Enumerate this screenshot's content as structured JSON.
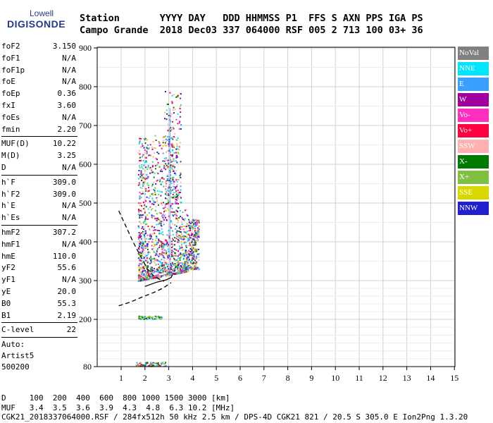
{
  "logo": {
    "line1": "Lowell",
    "line2": "DIGISONDE"
  },
  "header": {
    "line1": "Station       YYYY DAY   DDD HHMMSS P1  FFS S AXN PPS IGA PS",
    "line2": "Campo Grande  2018 Dec03 337 064000 RSF 005 2 713 100 03+ 36"
  },
  "params": {
    "group1": [
      {
        "label": "foF2",
        "value": "3.150"
      },
      {
        "label": "foF1",
        "value": "N/A"
      },
      {
        "label": "foF1p",
        "value": "N/A"
      },
      {
        "label": "foE",
        "value": "N/A"
      },
      {
        "label": "foEp",
        "value": "0.36"
      },
      {
        "label": "fxI",
        "value": "3.60"
      },
      {
        "label": "foEs",
        "value": "N/A"
      },
      {
        "label": "fmin",
        "value": "2.20"
      }
    ],
    "group2": [
      {
        "label": "MUF(D)",
        "value": "10.22"
      },
      {
        "label": "M(D)",
        "value": "3.25"
      },
      {
        "label": "D",
        "value": "N/A"
      }
    ],
    "group3": [
      {
        "label": "h`F",
        "value": "309.0"
      },
      {
        "label": "h`F2",
        "value": "309.0"
      },
      {
        "label": "h`E",
        "value": "N/A"
      },
      {
        "label": "h`Es",
        "value": "N/A"
      }
    ],
    "group4": [
      {
        "label": "hmF2",
        "value": "307.2"
      },
      {
        "label": "hmF1",
        "value": "N/A"
      },
      {
        "label": "hmE",
        "value": "110.0"
      },
      {
        "label": "yF2",
        "value": "55.6"
      },
      {
        "label": "yF1",
        "value": "N/A"
      },
      {
        "label": "yE",
        "value": "20.0"
      },
      {
        "label": "B0",
        "value": "55.3"
      },
      {
        "label": "B1",
        "value": "2.19"
      }
    ],
    "group5": [
      {
        "label": "C-level",
        "value": "22"
      }
    ],
    "auto": {
      "line1": "Auto:",
      "line2": "Artist5",
      "line3": "500200"
    }
  },
  "legend": [
    {
      "label": "NoVal",
      "color": "#808080"
    },
    {
      "label": "NNE",
      "color": "#00e5ff"
    },
    {
      "label": "E",
      "color": "#3aa0ff"
    },
    {
      "label": "W",
      "color": "#a000a0"
    },
    {
      "label": "Vo-",
      "color": "#ff30c0"
    },
    {
      "label": "Vo+",
      "color": "#ff0040"
    },
    {
      "label": "SSW",
      "color": "#ffb0b0"
    },
    {
      "label": "X-",
      "color": "#007a00"
    },
    {
      "label": "X+",
      "color": "#80c040"
    },
    {
      "label": "SSE",
      "color": "#d8d800"
    },
    {
      "label": "NNW",
      "color": "#2020d0"
    }
  ],
  "footer": {
    "line1": "D     100  200  400  600  800 1000 1500 3000 [km]",
    "line2": "MUF   3.4  3.5  3.6  3.9  4.3  4.8  6.3 10.2 [MHz]",
    "line3": "CGK21_2018337064000.RSF / 284fx512h 50 kHz 2.5 km / DPS-4D CGK21 821 / 20.5 S 305.0 E Ion2Png 1.3.20"
  },
  "chart_data": {
    "type": "scatter",
    "title": "",
    "xlabel": "",
    "ylabel": "",
    "xlim": [
      0.9,
      15
    ],
    "ylim": [
      80,
      900
    ],
    "xticks": [
      1,
      2,
      3,
      4,
      5,
      6,
      7,
      8,
      9,
      10,
      11,
      12,
      13,
      14,
      15
    ],
    "yticks": [
      80,
      200,
      300,
      400,
      500,
      600,
      700,
      800,
      900
    ],
    "grid": true,
    "legend_placement": "right",
    "trace_profile": {
      "style": "solid",
      "points": [
        [
          2.0,
          285
        ],
        [
          2.5,
          296
        ],
        [
          2.9,
          302
        ],
        [
          3.1,
          308
        ],
        [
          3.15,
          315
        ]
      ]
    },
    "extrapolated_topside": {
      "style": "dashed",
      "points": [
        [
          0.9,
          480
        ],
        [
          1.2,
          440
        ],
        [
          1.5,
          400
        ],
        [
          1.8,
          365
        ],
        [
          2.1,
          330
        ],
        [
          2.4,
          310
        ],
        [
          2.8,
          298
        ]
      ]
    },
    "extrapolated_bottomside": {
      "style": "dashed",
      "points": [
        [
          0.9,
          235
        ],
        [
          1.4,
          245
        ],
        [
          1.9,
          258
        ],
        [
          2.4,
          270
        ],
        [
          2.8,
          282
        ],
        [
          3.1,
          295
        ]
      ]
    },
    "echo_clusters": [
      {
        "name": "F-layer echoes",
        "x_range": [
          1.7,
          4.7
        ],
        "y_range": [
          285,
          790
        ]
      },
      {
        "name": "sporadic layer",
        "x_range": [
          1.7,
          2.7
        ],
        "y_range": [
          202,
          210
        ]
      },
      {
        "name": "low echoes",
        "x_range": [
          1.6,
          2.9
        ],
        "y_range": [
          82,
          92
        ]
      }
    ]
  }
}
